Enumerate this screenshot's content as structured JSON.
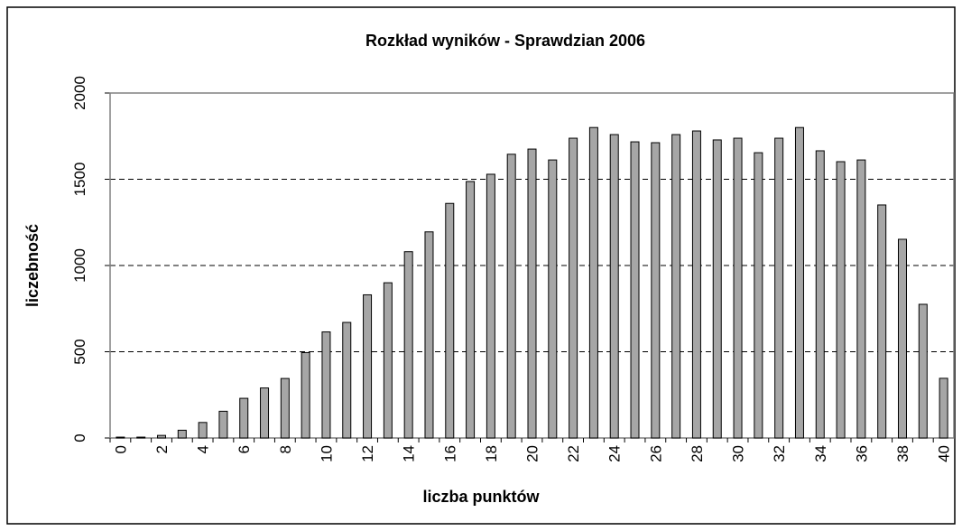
{
  "chart_data": {
    "type": "bar",
    "title": "Rozkład wyników - Sprawdzian 2006",
    "x_label": "liczba punktów",
    "y_label": "liczebność",
    "categories": [
      0,
      null,
      2,
      null,
      4,
      null,
      6,
      null,
      8,
      null,
      10,
      null,
      12,
      null,
      14,
      null,
      16,
      null,
      18,
      null,
      20,
      null,
      22,
      null,
      24,
      null,
      26,
      null,
      28,
      null,
      30,
      null,
      32,
      null,
      34,
      null,
      36,
      null,
      38,
      null,
      40
    ],
    "values": [
      5,
      5,
      15,
      45,
      90,
      155,
      230,
      290,
      345,
      495,
      615,
      670,
      830,
      900,
      1080,
      1195,
      1360,
      1487,
      1529,
      1645,
      1675,
      1612,
      1738,
      1800,
      1759,
      1717,
      1712,
      1759,
      1780,
      1728,
      1738,
      1654,
      1738,
      1800,
      1665,
      1602,
      1612,
      1351,
      1152,
      775,
      346
    ],
    "color": "#a6a6a6",
    "ylim": [
      0,
      2000
    ],
    "yticks": [
      0,
      500,
      1000,
      1500,
      2000
    ],
    "grid": true
  }
}
